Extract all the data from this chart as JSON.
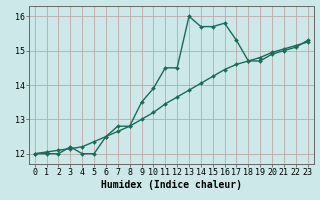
{
  "xlabel": "Humidex (Indice chaleur)",
  "ylabel": "",
  "bg_color": "#cce8e8",
  "grid_color": "#c0a8a8",
  "line_color": "#1a6b5a",
  "xlim": [
    -0.5,
    23.5
  ],
  "ylim": [
    11.7,
    16.3
  ],
  "xticks": [
    0,
    1,
    2,
    3,
    4,
    5,
    6,
    7,
    8,
    9,
    10,
    11,
    12,
    13,
    14,
    15,
    16,
    17,
    18,
    19,
    20,
    21,
    22,
    23
  ],
  "yticks": [
    12,
    13,
    14,
    15,
    16
  ],
  "curve1_x": [
    0,
    1,
    2,
    3,
    4,
    5,
    6,
    7,
    8,
    9,
    10,
    11,
    12,
    13,
    14,
    15,
    16,
    17,
    18,
    19,
    20,
    21,
    22,
    23
  ],
  "curve1_y": [
    12.0,
    12.0,
    12.0,
    12.2,
    12.0,
    12.0,
    12.5,
    12.8,
    12.8,
    13.5,
    13.9,
    14.5,
    14.5,
    16.0,
    15.7,
    15.7,
    15.8,
    15.3,
    14.7,
    14.7,
    14.9,
    15.0,
    15.1,
    15.3
  ],
  "curve2_x": [
    0,
    1,
    2,
    3,
    4,
    5,
    6,
    7,
    8,
    9,
    10,
    11,
    12,
    13,
    14,
    15,
    16,
    17,
    18,
    19,
    20,
    21,
    22,
    23
  ],
  "curve2_y": [
    12.0,
    12.05,
    12.1,
    12.15,
    12.2,
    12.35,
    12.5,
    12.65,
    12.8,
    13.0,
    13.2,
    13.45,
    13.65,
    13.85,
    14.05,
    14.25,
    14.45,
    14.6,
    14.7,
    14.8,
    14.95,
    15.05,
    15.15,
    15.25
  ],
  "tick_fontsize": 6,
  "xlabel_fontsize": 7,
  "marker_size": 2.0,
  "linewidth": 1.0
}
